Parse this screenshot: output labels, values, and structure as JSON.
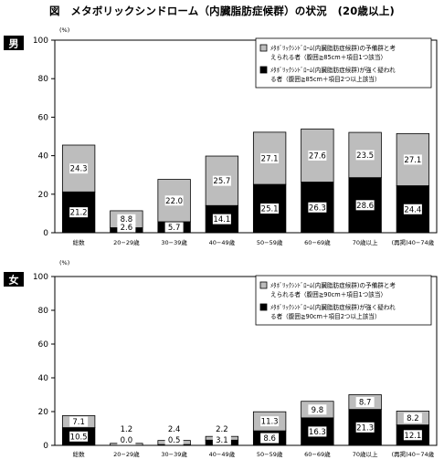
{
  "title": "図　メタボリックシンドローム（内臓脂肪症候群）の状況　(20歳以上)",
  "colors": {
    "upper": "#bdbdbd",
    "lower": "#000000",
    "badge": "#000000"
  },
  "chart_data": [
    {
      "type": "bar",
      "stacked": true,
      "panel_label": "男",
      "unit": "(%)",
      "ylim": [
        0,
        100
      ],
      "yticks": [
        0,
        20,
        40,
        60,
        80,
        100
      ],
      "grid": false,
      "legend_placement": "top-right",
      "categories": [
        "総数",
        "20−29歳",
        "30−39歳",
        "40−49歳",
        "50−59歳",
        "60−69歳",
        "70歳以上",
        "(再掲)40−74歳"
      ],
      "series": [
        {
          "name": "メタボリックシンドロームが強く疑われる者（腹囲≧85cm＋項目2つ以上該当）",
          "legend_lines": [
            "ﾒﾀﾎﾞﾘｯｸｼﾝﾄﾞﾛｰﾑ(内臓脂肪症候群)が強く疑われ",
            "る者（腹囲≧85cm＋項目2つ以上該当）"
          ],
          "color": "#000000",
          "values": [
            21.2,
            2.6,
            5.7,
            14.1,
            25.1,
            26.3,
            28.6,
            24.4
          ]
        },
        {
          "name": "メタボリックシンドロームの予備群と考えられる者（腹囲≧85cm＋項目1つ該当）",
          "legend_lines": [
            "ﾒﾀﾎﾞﾘｯｸｼﾝﾄﾞﾛｰﾑ(内臓脂肪症候群)の予備群と考",
            "えられる者（腹囲≧85cm＋項目1つ該当）"
          ],
          "color": "#bdbdbd",
          "values": [
            24.3,
            8.8,
            22.0,
            25.7,
            27.1,
            27.6,
            23.5,
            27.1
          ]
        }
      ]
    },
    {
      "type": "bar",
      "stacked": true,
      "panel_label": "女",
      "unit": "(%)",
      "ylim": [
        0,
        100
      ],
      "yticks": [
        0,
        20,
        40,
        60,
        80,
        100
      ],
      "grid": false,
      "legend_placement": "top-right",
      "categories": [
        "総数",
        "20−29歳",
        "30−39歳",
        "40−49歳",
        "50−59歳",
        "60−69歳",
        "70歳以上",
        "(再掲)40−74歳"
      ],
      "series": [
        {
          "name": "メタボリックシンドロームが強く疑われる者（腹囲≧90cm＋項目2つ以上該当）",
          "legend_lines": [
            "ﾒﾀﾎﾞﾘｯｸｼﾝﾄﾞﾛｰﾑ(内臓脂肪症候群)が強く疑われ",
            "る者（腹囲≧90cm＋項目2つ以上該当）"
          ],
          "color": "#000000",
          "values": [
            10.5,
            0.0,
            0.5,
            3.1,
            8.6,
            16.3,
            21.3,
            12.1
          ]
        },
        {
          "name": "メタボリックシンドロームの予備群と考えられる者（腹囲≧90cm＋項目1つ該当）",
          "legend_lines": [
            "ﾒﾀﾎﾞﾘｯｸｼﾝﾄﾞﾛｰﾑ(内臓脂肪症候群)の予備群と考",
            "えられる者（腹囲≧90cm＋項目1つ該当）"
          ],
          "color": "#bdbdbd",
          "values": [
            7.1,
            1.2,
            2.4,
            2.2,
            11.3,
            9.8,
            8.7,
            8.2
          ]
        }
      ]
    }
  ]
}
